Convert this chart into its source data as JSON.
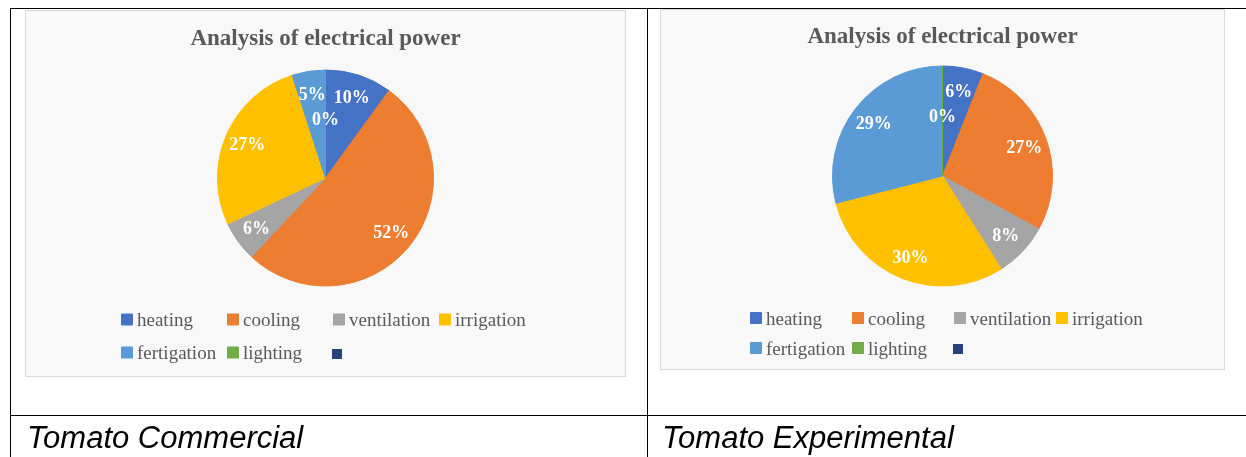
{
  "chart_data": [
    {
      "type": "pie",
      "title": "Analysis of electrical power",
      "categories": [
        "heating",
        "cooling",
        "ventilation",
        "irrigation",
        "fertigation",
        "lighting",
        null
      ],
      "values": [
        10,
        52,
        6,
        27,
        5,
        0,
        null
      ],
      "colors": [
        "#4472c4",
        "#ed7d31",
        "#a5a5a5",
        "#ffc000",
        "#5b9bd5",
        "#70ad47",
        "#264478"
      ],
      "value_labels": [
        "10%",
        "52%",
        "6%",
        "27%",
        "5%",
        "0%",
        null
      ],
      "legend": "bottom",
      "annotations": [
        "Tomato Commercial"
      ]
    },
    {
      "type": "pie",
      "title": "Analysis of electrical power",
      "categories": [
        "heating",
        "cooling",
        "ventilation",
        "irrigation",
        "fertigation",
        "lighting",
        null
      ],
      "values": [
        6,
        27,
        8,
        30,
        29,
        0,
        null
      ],
      "colors": [
        "#4472c4",
        "#ed7d31",
        "#a5a5a5",
        "#ffc000",
        "#5b9bd5",
        "#70ad47",
        "#264478"
      ],
      "value_labels": [
        "6%",
        "27%",
        "8%",
        "30%",
        "29%",
        "0%",
        null
      ],
      "legend": "bottom",
      "annotations": [
        "Tomato Experimental"
      ]
    }
  ]
}
